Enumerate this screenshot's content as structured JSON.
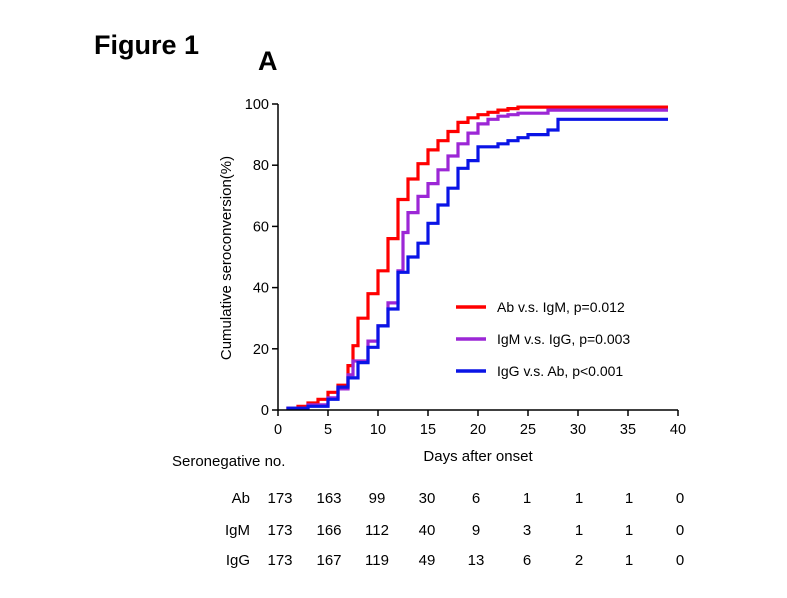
{
  "figure_title": "Figure 1",
  "panel_label": "A",
  "chart_data": {
    "type": "line",
    "title": "",
    "xlabel": "Days after onset",
    "ylabel": "Cumulative seroconversion(%)",
    "xlim": [
      0,
      40
    ],
    "ylim": [
      0,
      100
    ],
    "xticks": [
      0,
      5,
      10,
      15,
      20,
      25,
      30,
      35,
      40
    ],
    "yticks": [
      0,
      20,
      40,
      60,
      80,
      100
    ],
    "grid": false,
    "legend_position": "right",
    "series": [
      {
        "name": "Ab v.s. IgM, p=0.012",
        "color": "#ff0000",
        "step": true,
        "points": [
          [
            1,
            0
          ],
          [
            1,
            0.6
          ],
          [
            2,
            0.6
          ],
          [
            2,
            1.2
          ],
          [
            3,
            1.2
          ],
          [
            3,
            2.3
          ],
          [
            4,
            2.3
          ],
          [
            4,
            3.5
          ],
          [
            5,
            3.5
          ],
          [
            5,
            5.8
          ],
          [
            6,
            5.8
          ],
          [
            6,
            8.1
          ],
          [
            7,
            8.1
          ],
          [
            7,
            14.5
          ],
          [
            7.5,
            14.5
          ],
          [
            7.5,
            21
          ],
          [
            8,
            21
          ],
          [
            8,
            30
          ],
          [
            9,
            30
          ],
          [
            9,
            38
          ],
          [
            10,
            38
          ],
          [
            10,
            45.5
          ],
          [
            11,
            45.5
          ],
          [
            11,
            56
          ],
          [
            12,
            56
          ],
          [
            12,
            68.8
          ],
          [
            13,
            68.8
          ],
          [
            13,
            75.5
          ],
          [
            14,
            75.5
          ],
          [
            14,
            80.5
          ],
          [
            15,
            80.5
          ],
          [
            15,
            85
          ],
          [
            16,
            85
          ],
          [
            16,
            88
          ],
          [
            17,
            88
          ],
          [
            17,
            91
          ],
          [
            18,
            91
          ],
          [
            18,
            94
          ],
          [
            19,
            94
          ],
          [
            19,
            95.5
          ],
          [
            20,
            95.5
          ],
          [
            20,
            96.5
          ],
          [
            21,
            96.5
          ],
          [
            21,
            97.3
          ],
          [
            22,
            97.3
          ],
          [
            22,
            98
          ],
          [
            23,
            98
          ],
          [
            23,
            98.5
          ],
          [
            24,
            98.5
          ],
          [
            24,
            99
          ],
          [
            39,
            99
          ]
        ]
      },
      {
        "name": "IgM v.s. IgG, p=0.003",
        "color": "#9c27d6",
        "step": true,
        "points": [
          [
            1,
            0
          ],
          [
            1,
            0.6
          ],
          [
            3,
            0.6
          ],
          [
            3,
            1.7
          ],
          [
            5,
            1.7
          ],
          [
            5,
            4
          ],
          [
            6,
            4
          ],
          [
            6,
            6.9
          ],
          [
            7,
            6.9
          ],
          [
            7,
            11.5
          ],
          [
            7.5,
            11.5
          ],
          [
            7.5,
            16
          ],
          [
            9,
            16
          ],
          [
            9,
            22.5
          ],
          [
            10,
            22.5
          ],
          [
            10,
            27.5
          ],
          [
            11,
            27.5
          ],
          [
            11,
            35
          ],
          [
            12,
            35
          ],
          [
            12,
            45.5
          ],
          [
            12.5,
            45.5
          ],
          [
            12.5,
            58
          ],
          [
            13,
            58
          ],
          [
            13,
            64.5
          ],
          [
            14,
            64.5
          ],
          [
            14,
            69.8
          ],
          [
            15,
            69.8
          ],
          [
            15,
            74
          ],
          [
            16,
            74
          ],
          [
            16,
            78.5
          ],
          [
            17,
            78.5
          ],
          [
            17,
            83
          ],
          [
            18,
            83
          ],
          [
            18,
            87
          ],
          [
            19,
            87
          ],
          [
            19,
            90.5
          ],
          [
            20,
            90.5
          ],
          [
            20,
            93.5
          ],
          [
            21,
            93.5
          ],
          [
            21,
            95
          ],
          [
            22,
            95
          ],
          [
            22,
            96
          ],
          [
            23,
            96
          ],
          [
            23,
            96.5
          ],
          [
            24,
            96.5
          ],
          [
            24,
            97
          ],
          [
            27,
            97
          ],
          [
            27,
            98
          ],
          [
            39,
            98
          ]
        ]
      },
      {
        "name": "IgG v.s. Ab, p<0.001",
        "color": "#0a14e6",
        "step": true,
        "points": [
          [
            1,
            0
          ],
          [
            1,
            0.6
          ],
          [
            3,
            0.6
          ],
          [
            3,
            1.2
          ],
          [
            5,
            1.2
          ],
          [
            5,
            3.5
          ],
          [
            6,
            3.5
          ],
          [
            6,
            7.5
          ],
          [
            7,
            7.5
          ],
          [
            7,
            10.5
          ],
          [
            8,
            10.5
          ],
          [
            8,
            15.5
          ],
          [
            9,
            15.5
          ],
          [
            9,
            20.5
          ],
          [
            10,
            20.5
          ],
          [
            10,
            27.5
          ],
          [
            11,
            27.5
          ],
          [
            11,
            33
          ],
          [
            12,
            33
          ],
          [
            12,
            45
          ],
          [
            13,
            45
          ],
          [
            13,
            50
          ],
          [
            14,
            50
          ],
          [
            14,
            54.5
          ],
          [
            15,
            54.5
          ],
          [
            15,
            61
          ],
          [
            16,
            61
          ],
          [
            16,
            67
          ],
          [
            17,
            67
          ],
          [
            17,
            72.5
          ],
          [
            18,
            72.5
          ],
          [
            18,
            79
          ],
          [
            19,
            79
          ],
          [
            19,
            81.5
          ],
          [
            20,
            81.5
          ],
          [
            20,
            86
          ],
          [
            22,
            86
          ],
          [
            22,
            87
          ],
          [
            23,
            87
          ],
          [
            23,
            88
          ],
          [
            24,
            88
          ],
          [
            24,
            89
          ],
          [
            25,
            89
          ],
          [
            25,
            90
          ],
          [
            27,
            90
          ],
          [
            27,
            91.5
          ],
          [
            28,
            91.5
          ],
          [
            28,
            95
          ],
          [
            39,
            95
          ]
        ]
      }
    ]
  },
  "risk_table": {
    "title": "Seronegative no.",
    "time_points": [
      0,
      5,
      10,
      15,
      20,
      25,
      30,
      35,
      40
    ],
    "rows": [
      {
        "label": "Ab",
        "values": [
          "173",
          "163",
          "99",
          "30",
          "6",
          "1",
          "1",
          "1",
          "0"
        ]
      },
      {
        "label": "IgM",
        "values": [
          "173",
          "166",
          "112",
          "40",
          "9",
          "3",
          "1",
          "1",
          "0"
        ]
      },
      {
        "label": "IgG",
        "values": [
          "173",
          "167",
          "119",
          "49",
          "13",
          "6",
          "2",
          "1",
          "0"
        ]
      }
    ]
  }
}
